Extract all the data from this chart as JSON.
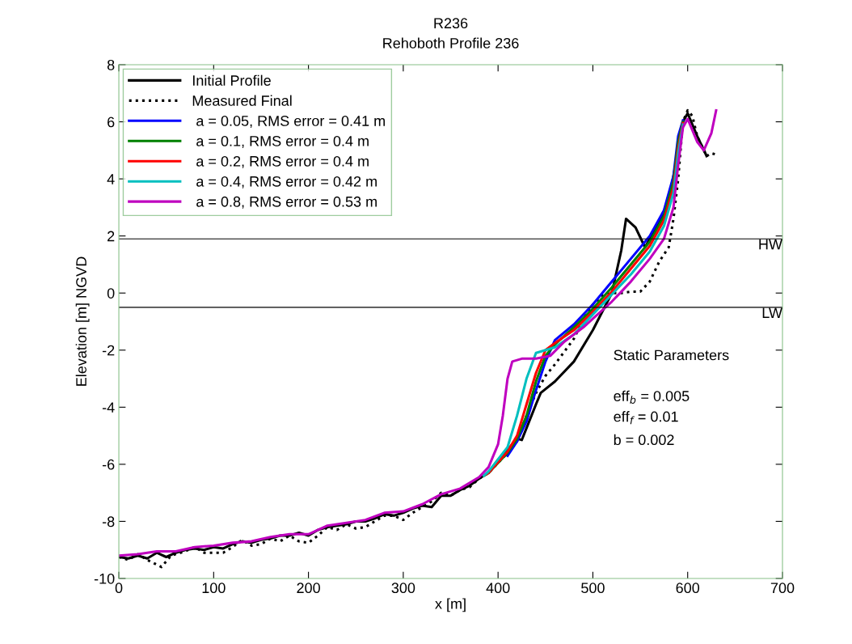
{
  "chart_data": {
    "type": "line",
    "title": "R236",
    "subtitle": "Rehoboth Profile 236",
    "xlabel": "x [m]",
    "ylabel": "Elevation [m] NGVD",
    "xlim": [
      0,
      700
    ],
    "xticks": [
      0,
      100,
      200,
      300,
      400,
      500,
      600,
      700
    ],
    "ylim": [
      -10,
      8
    ],
    "yticks": [
      -10,
      -8,
      -6,
      -4,
      -2,
      0,
      2,
      4,
      6,
      8
    ],
    "grid": false,
    "legend": "top left",
    "series": [
      {
        "name": "Initial Profile",
        "color": "#000000",
        "line_style": "solid",
        "x": [
          0,
          10,
          20,
          30,
          40,
          50,
          60,
          70,
          80,
          90,
          100,
          110,
          120,
          130,
          140,
          150,
          160,
          170,
          180,
          190,
          200,
          210,
          220,
          230,
          240,
          250,
          260,
          270,
          280,
          290,
          300,
          310,
          320,
          330,
          340,
          350,
          360,
          370,
          380,
          390,
          400,
          410,
          420,
          425,
          440,
          445,
          460,
          480,
          500,
          520,
          530,
          535,
          545,
          555,
          565,
          580,
          590,
          595,
          600,
          610,
          620
        ],
        "values": [
          -9.25,
          -9.3,
          -9.2,
          -9.3,
          -9.1,
          -9.25,
          -9.1,
          -9.0,
          -8.95,
          -9.0,
          -8.9,
          -8.95,
          -8.8,
          -8.7,
          -8.75,
          -8.65,
          -8.6,
          -8.5,
          -8.5,
          -8.4,
          -8.5,
          -8.3,
          -8.2,
          -8.15,
          -8.1,
          -8.0,
          -8.0,
          -7.9,
          -7.75,
          -7.8,
          -7.7,
          -7.55,
          -7.45,
          -7.5,
          -7.1,
          -7.1,
          -6.9,
          -6.75,
          -6.5,
          -6.3,
          -5.9,
          -5.5,
          -5.1,
          -5.15,
          -3.9,
          -3.5,
          -3.1,
          -2.4,
          -1.3,
          0.0,
          1.5,
          2.6,
          2.3,
          1.6,
          2.2,
          3.2,
          5.0,
          6.0,
          6.3,
          5.5,
          4.8
        ]
      },
      {
        "name": "Measured Final",
        "color": "#000000",
        "line_style": "dotted",
        "x": [
          0,
          10,
          20,
          30,
          45,
          55,
          70,
          80,
          90,
          100,
          110,
          120,
          130,
          140,
          150,
          160,
          170,
          180,
          190,
          200,
          210,
          220,
          230,
          240,
          250,
          260,
          270,
          280,
          290,
          300,
          310,
          320,
          330,
          340,
          350,
          360,
          370,
          380,
          390,
          400,
          410,
          420,
          430,
          440,
          450,
          460,
          480,
          490,
          500,
          510,
          520,
          530,
          540,
          550,
          560,
          570,
          580,
          585,
          590,
          595,
          600,
          605,
          610,
          620,
          625,
          630
        ],
        "values": [
          -9.25,
          -9.35,
          -9.15,
          -9.35,
          -9.6,
          -9.2,
          -9.05,
          -8.9,
          -9.1,
          -9.1,
          -9.1,
          -8.9,
          -8.65,
          -8.85,
          -8.8,
          -8.6,
          -8.7,
          -8.5,
          -8.7,
          -8.75,
          -8.5,
          -8.2,
          -8.3,
          -8.1,
          -8.25,
          -8.2,
          -8.0,
          -7.8,
          -7.8,
          -7.95,
          -7.7,
          -7.5,
          -7.3,
          -7.0,
          -7.1,
          -6.9,
          -6.8,
          -6.5,
          -6.3,
          -5.95,
          -5.6,
          -5.2,
          -4.3,
          -3.5,
          -2.9,
          -2.5,
          -1.6,
          -0.9,
          -0.4,
          -0.1,
          0.0,
          0.0,
          0.05,
          0.05,
          0.4,
          1.1,
          1.6,
          2.6,
          4.0,
          6.0,
          6.4,
          6.2,
          5.5,
          4.8,
          4.9,
          4.85
        ]
      },
      {
        "name": " a = 0.05, RMS error = 0.41 m",
        "color": "#0000ff",
        "line_style": "solid",
        "x": [
          410,
          420,
          430,
          440,
          450,
          460,
          480,
          500,
          520,
          540,
          560,
          575,
          585,
          590,
          595
        ],
        "values": [
          -5.7,
          -5.2,
          -4.5,
          -3.4,
          -2.4,
          -1.65,
          -1.1,
          -0.4,
          0.4,
          1.2,
          2.0,
          2.9,
          4.1,
          5.5,
          6.05
        ]
      },
      {
        "name": " a = 0.1, RMS error = 0.4 m",
        "color": "#008000",
        "line_style": "solid",
        "x": [
          385,
          390,
          410,
          420,
          430,
          440,
          450,
          460,
          480,
          500,
          520,
          540,
          560,
          575,
          585,
          590,
          595
        ],
        "values": [
          -6.4,
          -6.3,
          -5.6,
          -5.1,
          -4.3,
          -3.1,
          -2.2,
          -1.8,
          -1.2,
          -0.55,
          0.2,
          1.0,
          1.8,
          2.7,
          3.9,
          5.3,
          6.0
        ]
      },
      {
        "name": " a = 0.2, RMS error = 0.4 m",
        "color": "#ff0000",
        "line_style": "solid",
        "x": [
          385,
          390,
          410,
          420,
          430,
          440,
          450,
          460,
          480,
          500,
          520,
          540,
          560,
          575,
          585,
          590,
          595
        ],
        "values": [
          -6.4,
          -6.3,
          -5.55,
          -5.0,
          -3.9,
          -2.8,
          -2.0,
          -1.75,
          -1.3,
          -0.65,
          0.05,
          0.85,
          1.65,
          2.55,
          3.7,
          5.1,
          5.95
        ]
      },
      {
        "name": " a = 0.4, RMS error = 0.42 m",
        "color": "#00bfbf",
        "line_style": "solid",
        "x": [
          385,
          390,
          410,
          420,
          430,
          440,
          450,
          460,
          480,
          500,
          520,
          540,
          560,
          575,
          585,
          590,
          595
        ],
        "values": [
          -6.4,
          -6.25,
          -5.4,
          -4.3,
          -3.0,
          -2.1,
          -2.0,
          -1.9,
          -1.45,
          -0.75,
          -0.05,
          0.65,
          1.45,
          2.35,
          3.5,
          4.9,
          5.9
        ]
      },
      {
        "name": " a = 0.8, RMS error = 0.53 m",
        "color": "#bf00bf",
        "line_style": "solid",
        "x": [
          0,
          20,
          40,
          60,
          80,
          100,
          120,
          140,
          160,
          180,
          200,
          220,
          240,
          260,
          280,
          300,
          320,
          340,
          360,
          380,
          390,
          400,
          405,
          410,
          415,
          425,
          440,
          455,
          470,
          490,
          500,
          520,
          540,
          560,
          575,
          585,
          590,
          595,
          600,
          610,
          617,
          625,
          630
        ],
        "values": [
          -9.2,
          -9.15,
          -9.05,
          -9.05,
          -8.9,
          -8.85,
          -8.75,
          -8.7,
          -8.55,
          -8.45,
          -8.45,
          -8.15,
          -8.05,
          -7.95,
          -7.7,
          -7.65,
          -7.4,
          -7.05,
          -6.85,
          -6.45,
          -6.1,
          -5.3,
          -4.3,
          -3.0,
          -2.4,
          -2.3,
          -2.3,
          -2.2,
          -1.7,
          -1.2,
          -0.9,
          -0.3,
          0.4,
          1.2,
          1.9,
          3.0,
          4.5,
          5.8,
          6.1,
          5.3,
          5.0,
          5.6,
          6.4
        ]
      }
    ],
    "ref_lines": [
      {
        "axis": "y",
        "value": 1.9,
        "label": "HW",
        "color": "#000000"
      },
      {
        "axis": "y",
        "value": -0.5,
        "label": "LW",
        "color": "#000000"
      }
    ],
    "annotations": [
      "Static Parameters",
      "eff$_{b}$ = 0.005",
      "eff$_{f}$ = 0.01",
      "b = 0.002"
    ]
  }
}
